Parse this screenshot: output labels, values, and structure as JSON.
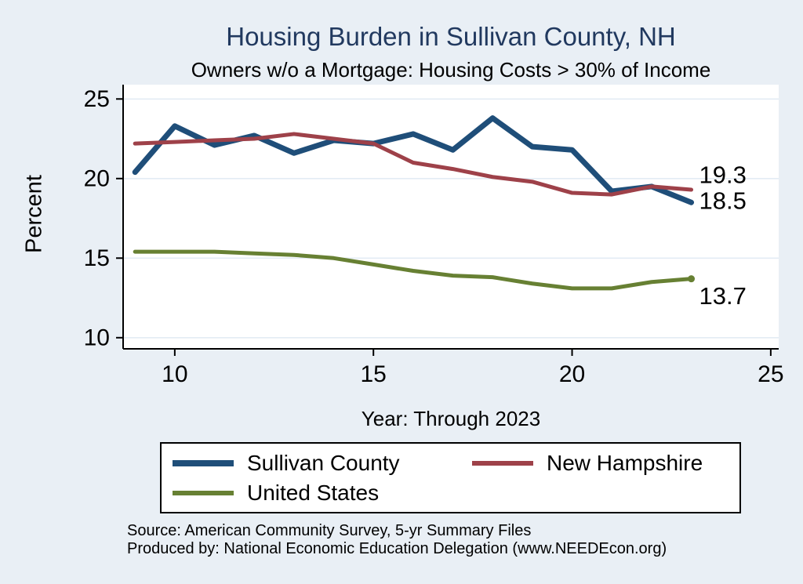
{
  "title": "Housing Burden in Sullivan County, NH",
  "subtitle": "Owners w/o a Mortgage: Housing Costs > 30% of Income",
  "x_axis_title": "Year: Through 2023",
  "y_axis_title": "Percent",
  "source": {
    "line1": "Source: American Community Survey, 5-yr Summary Files",
    "line2": "Produced by: National Economic Education Delegation (www.NEEDEcon.org)"
  },
  "colors": {
    "background": "#e9eff5",
    "plot_background": "#ffffff",
    "grid": "#e3ecf4",
    "axis": "#000000",
    "title_text": "#21395f",
    "text": "#000000"
  },
  "chart_data": {
    "type": "line",
    "x": [
      9,
      10,
      11,
      12,
      13,
      14,
      15,
      16,
      17,
      18,
      19,
      20,
      21,
      22,
      23
    ],
    "years": [
      2009,
      2010,
      2011,
      2012,
      2013,
      2014,
      2015,
      2016,
      2017,
      2018,
      2019,
      2020,
      2021,
      2022,
      2023
    ],
    "xticks": [
      10,
      15,
      20,
      25
    ],
    "yticks": [
      10,
      15,
      20,
      25
    ],
    "xlim": [
      8.7,
      25.2
    ],
    "ylim": [
      9.3,
      25.9
    ],
    "grid": "horizontal-only",
    "legend_position": "below-chart",
    "series": [
      {
        "name": "Sullivan County",
        "color": "#1f4e79",
        "line_width": 7,
        "values": [
          20.4,
          23.3,
          22.1,
          22.7,
          21.6,
          22.4,
          22.2,
          22.8,
          21.8,
          23.8,
          22.0,
          21.8,
          19.2,
          19.5,
          18.5
        ],
        "end_label": "18.5",
        "end_marker": false
      },
      {
        "name": "New Hampshire",
        "color": "#9e4149",
        "line_width": 5,
        "values": [
          22.2,
          22.3,
          22.4,
          22.5,
          22.8,
          22.5,
          22.2,
          21.0,
          20.6,
          20.1,
          19.8,
          19.1,
          19.0,
          19.5,
          19.3
        ],
        "end_label": "19.3",
        "end_marker": false
      },
      {
        "name": "United States",
        "color": "#678033",
        "line_width": 5,
        "values": [
          15.4,
          15.4,
          15.4,
          15.3,
          15.2,
          15.0,
          14.6,
          14.2,
          13.9,
          13.8,
          13.4,
          13.1,
          13.1,
          13.5,
          13.7
        ],
        "end_label": "13.7",
        "end_marker": true
      }
    ]
  }
}
